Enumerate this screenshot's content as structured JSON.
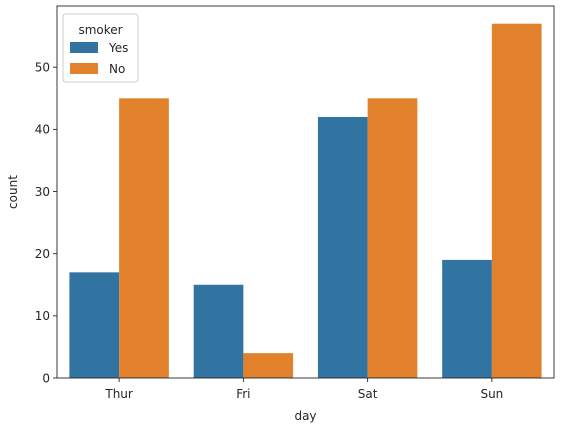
{
  "chart_data": {
    "type": "bar",
    "categories": [
      "Thur",
      "Fri",
      "Sat",
      "Sun"
    ],
    "series": [
      {
        "name": "Yes",
        "values": [
          17,
          15,
          42,
          19
        ],
        "color": "#3274a1"
      },
      {
        "name": "No",
        "values": [
          45,
          4,
          45,
          57
        ],
        "color": "#e1812c"
      }
    ],
    "xlabel": "day",
    "ylabel": "count",
    "ylim": [
      0,
      59.85
    ],
    "yticks": [
      0,
      10,
      20,
      30,
      40,
      50
    ],
    "legend": {
      "title": "smoker",
      "placement": "top-left"
    },
    "grid": false
  }
}
